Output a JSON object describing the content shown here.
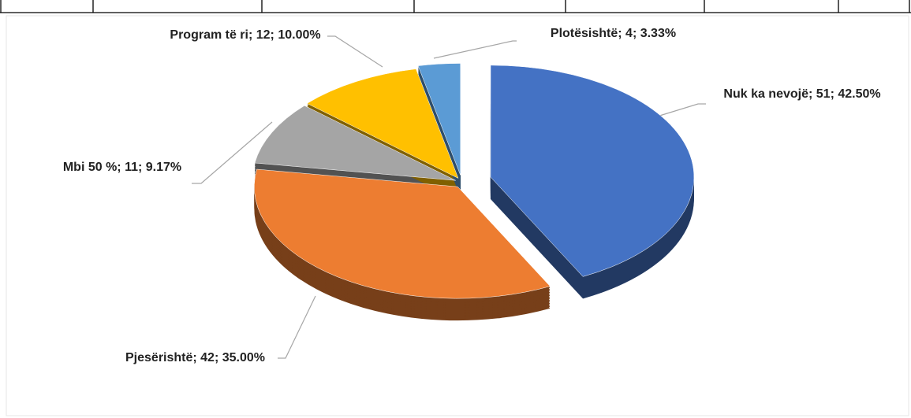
{
  "chart_data": {
    "type": "pie",
    "values": [
      51,
      42,
      11,
      12,
      4
    ],
    "value_labels": [
      "Nuk ka nevojë; 51; 42.50%",
      "Pjesërishtë; 42; 35.00%",
      "Mbi 50 %; 11; 9.17%",
      "Program të ri; 12; 10.00%",
      "Plotësishtë; 4; 3.33%"
    ],
    "colors": [
      "#4472c4",
      "#ed7d31",
      "#a5a5a5",
      "#ffc000",
      "#5b9bd5"
    ]
  }
}
